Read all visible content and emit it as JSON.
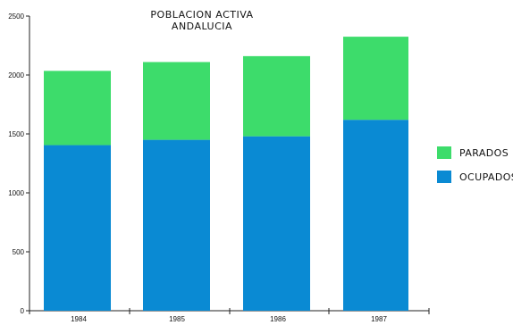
{
  "chart_data": {
    "type": "bar",
    "stacked": true,
    "title": [
      "POBLACION ACTIVA",
      "ANDALUCIA"
    ],
    "categories": [
      "1984",
      "1985",
      "1986",
      "1987"
    ],
    "series": [
      {
        "name": "OCUPADOS",
        "values": [
          1405,
          1450,
          1480,
          1620
        ],
        "color": "#0a8ad3"
      },
      {
        "name": "PARADOS",
        "values": [
          630,
          660,
          680,
          705
        ],
        "color": "#3ddc6b"
      }
    ],
    "ylim": [
      0,
      2500
    ],
    "yticks": [
      "0",
      "500",
      "1000",
      "1500",
      "2000",
      "2500"
    ],
    "legend_position": "right",
    "grid": false
  }
}
